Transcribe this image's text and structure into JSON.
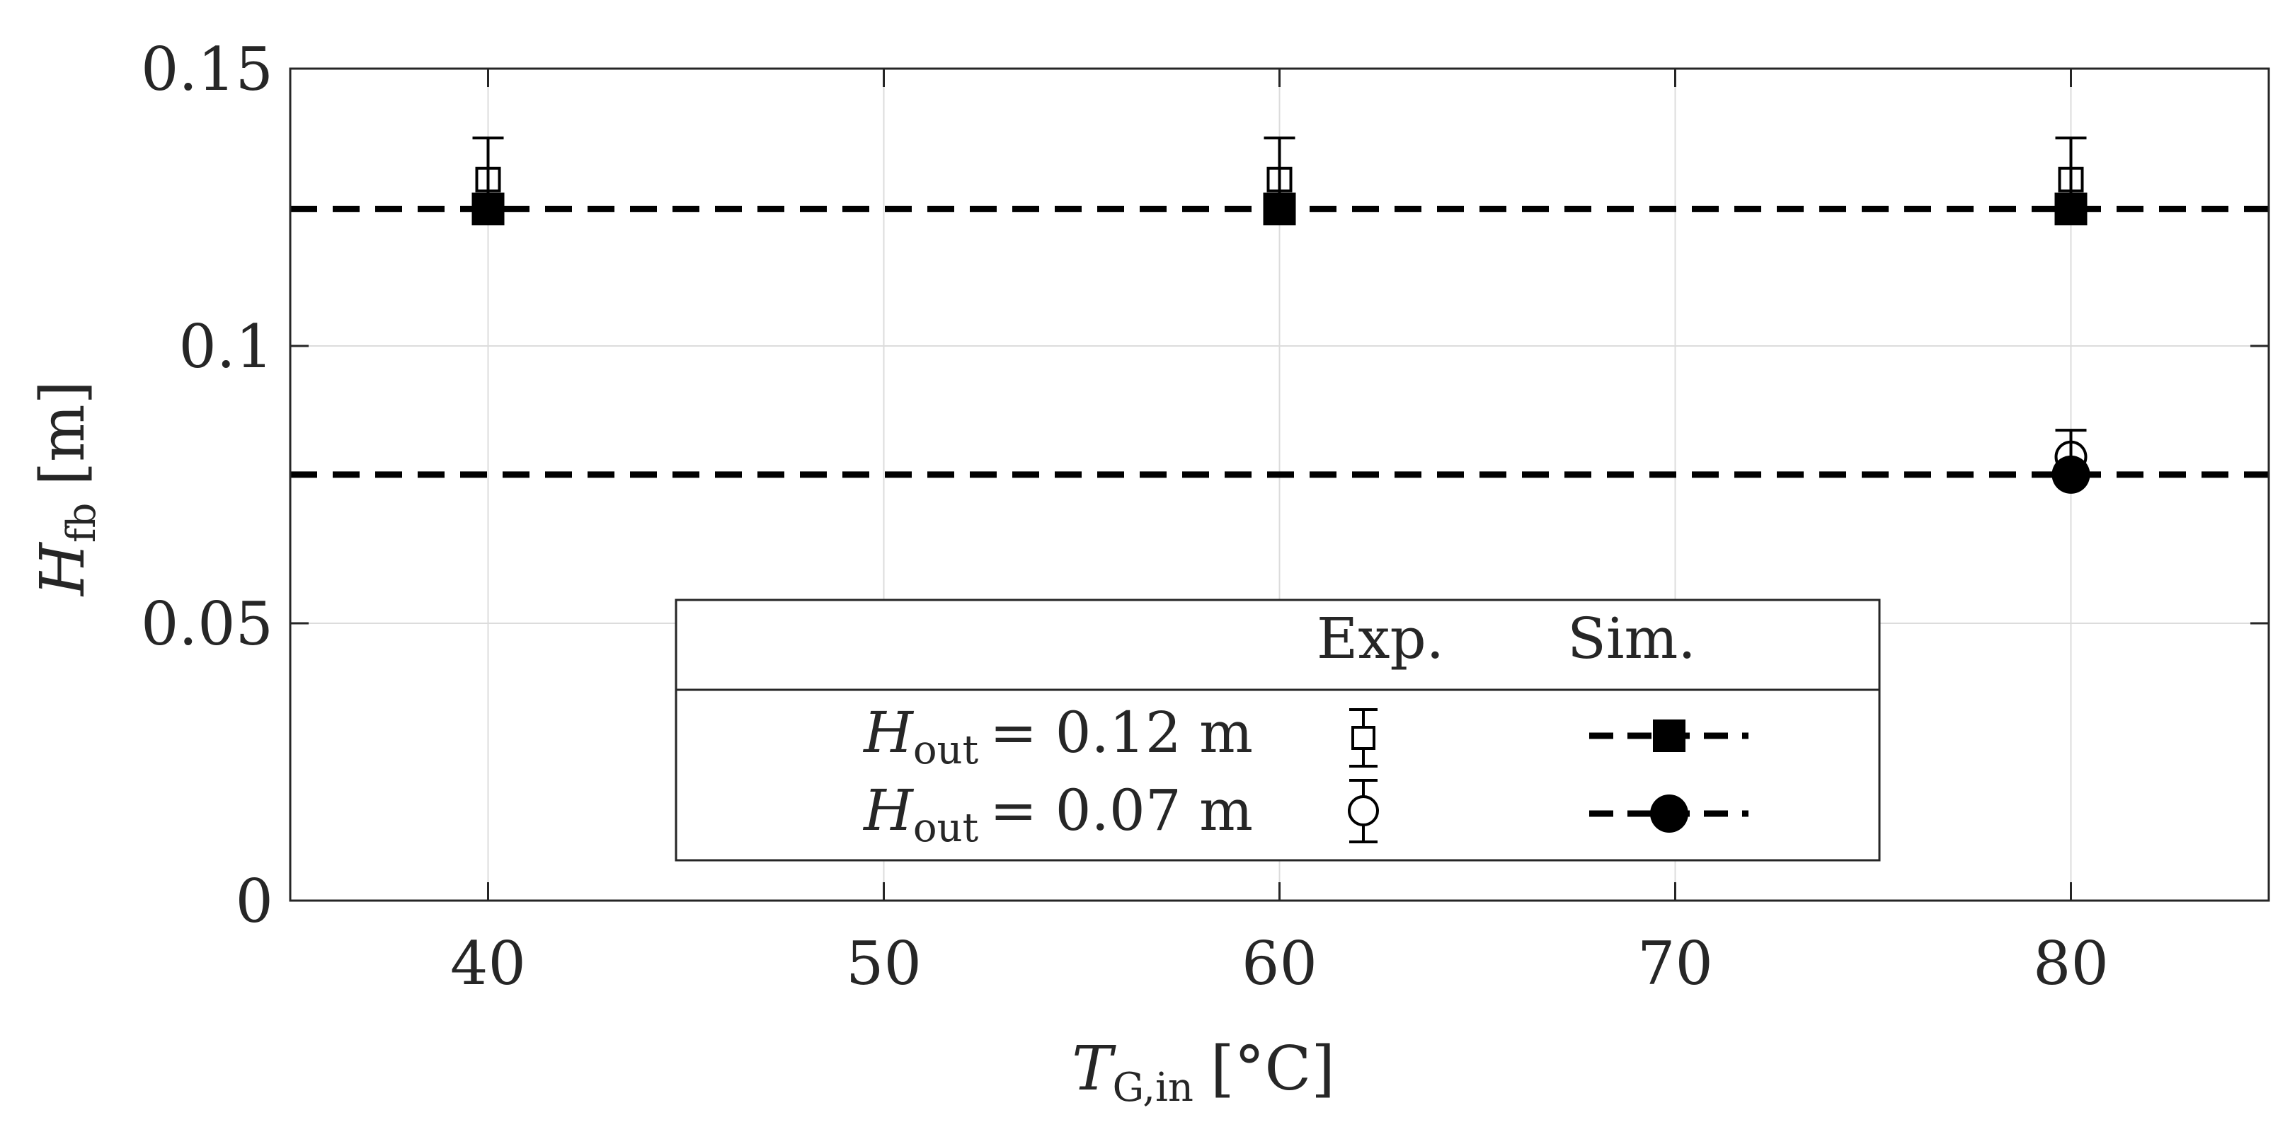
{
  "chart_data": {
    "type": "scatter",
    "title": "",
    "xlabel": {
      "main": "T",
      "sub": "G,in",
      "unit": "[°C]"
    },
    "ylabel": {
      "main": "H",
      "sub": "fb",
      "unit": "[m]"
    },
    "xlim": [
      35,
      85
    ],
    "ylim": [
      0,
      0.15
    ],
    "xticks": [
      40,
      50,
      60,
      70,
      80
    ],
    "yticks": [
      0,
      0.05,
      0.1,
      0.15
    ],
    "xtick_labels": [
      "40",
      "50",
      "60",
      "70",
      "80"
    ],
    "ytick_labels": [
      "0",
      "0.05",
      "0.1",
      "0.15"
    ],
    "grid": true,
    "legend": {
      "placement": "bottom-center",
      "header_exp": "Exp.",
      "header_sim": "Sim.",
      "entries": [
        {
          "main": "H",
          "sub": "out",
          "rest": "= 0.12 m",
          "marker": "square"
        },
        {
          "main": "H",
          "sub": "out",
          "rest": "= 0.07 m",
          "marker": "circle"
        }
      ]
    },
    "series": [
      {
        "kind": "experiment",
        "marker": "open-square",
        "x": [
          40,
          60,
          80
        ],
        "y": [
          0.13,
          0.13,
          0.13
        ],
        "yerr": [
          0.0075,
          0.0075,
          0.0075
        ]
      },
      {
        "kind": "simulation",
        "marker": "filled-square",
        "line": "dashed",
        "x": [
          35,
          85
        ],
        "y": [
          0.1247,
          0.1247
        ],
        "points_x": [
          40,
          60,
          80
        ],
        "points_y": [
          0.1247,
          0.1247,
          0.1247
        ]
      },
      {
        "kind": "experiment",
        "marker": "open-circle",
        "x": [
          80
        ],
        "y": [
          0.08
        ],
        "yerr": [
          0.0048
        ]
      },
      {
        "kind": "simulation",
        "marker": "filled-circle",
        "line": "dashed",
        "x": [
          35,
          85
        ],
        "y": [
          0.0768,
          0.0768
        ],
        "points_x": [
          80
        ],
        "points_y": [
          0.0768
        ]
      }
    ],
    "colors": {
      "axis": "#262626",
      "grid": "#dcdcdc",
      "marker": "#000000"
    }
  }
}
